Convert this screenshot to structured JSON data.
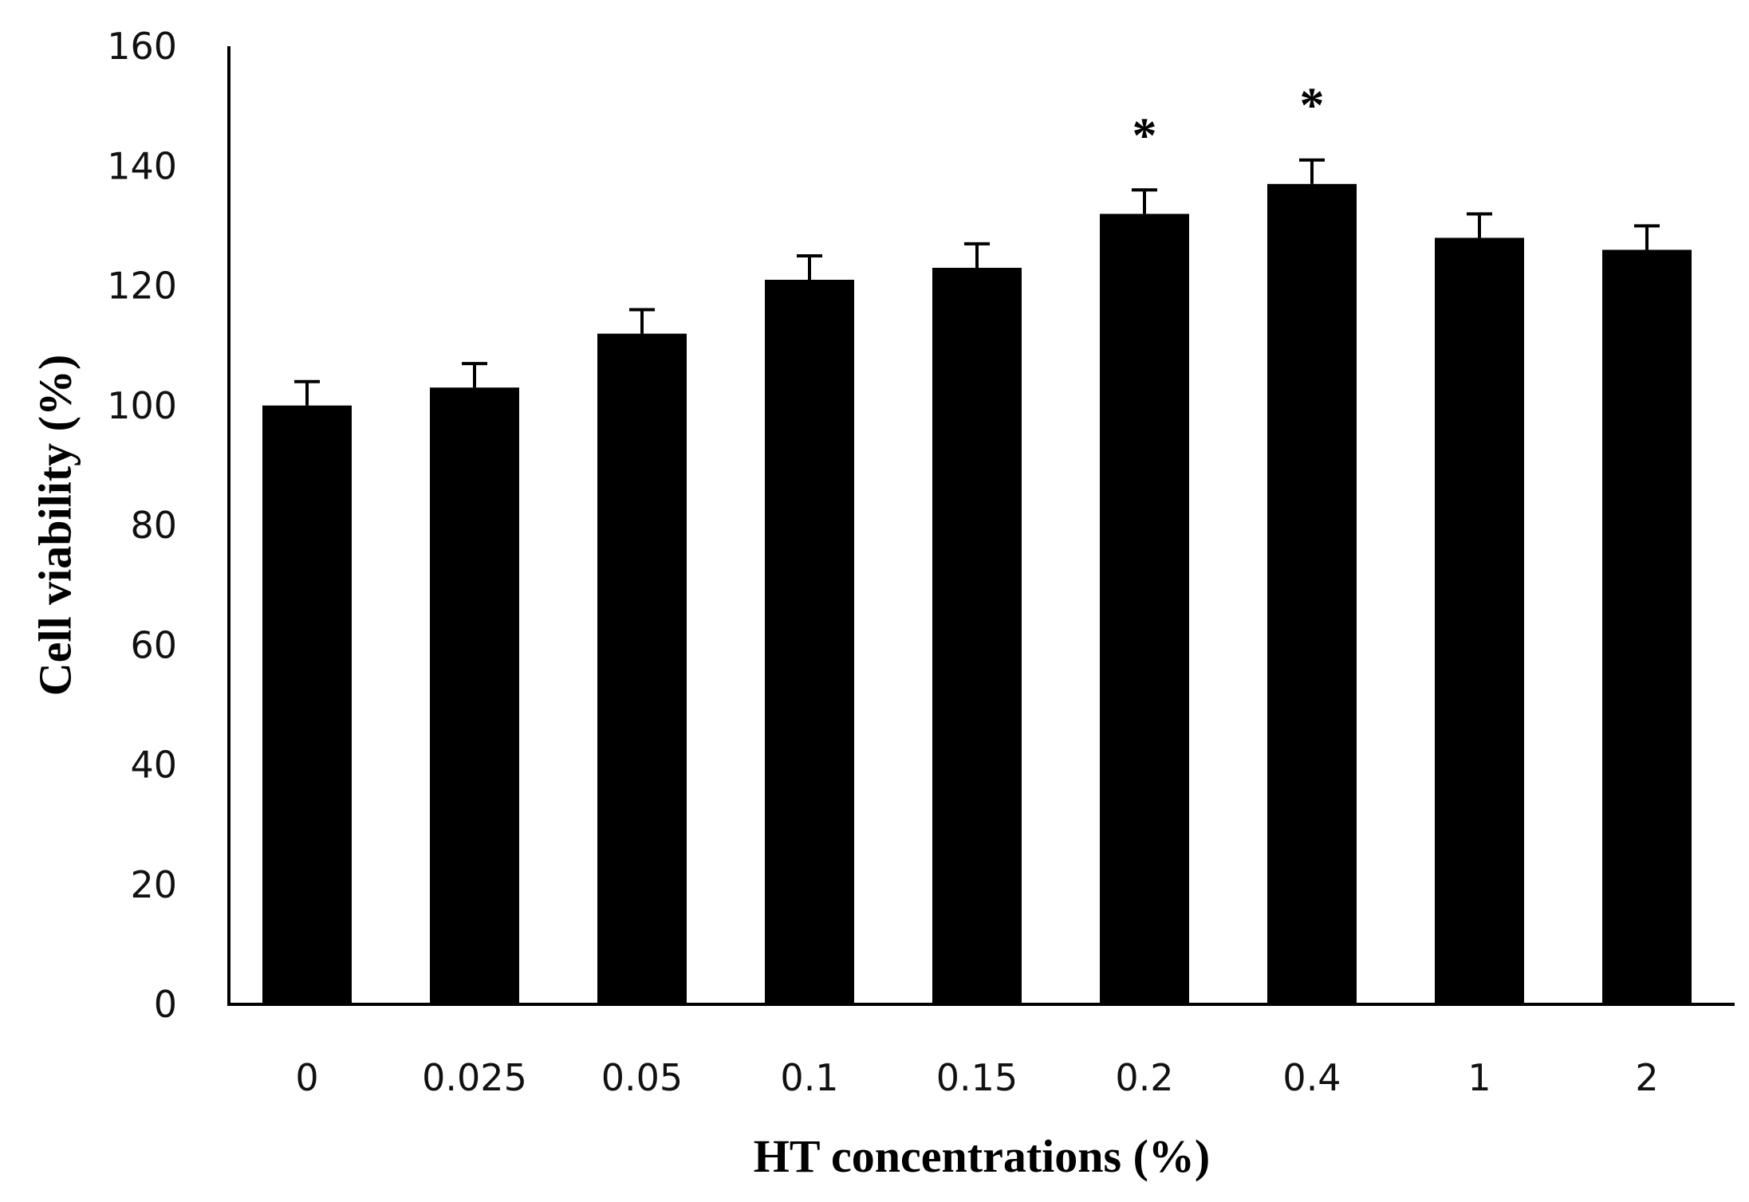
{
  "chart_data": {
    "type": "bar",
    "title": "",
    "xlabel": "HT concentrations (%)",
    "ylabel": "Cell viability (%)",
    "ylim": [
      0,
      160
    ],
    "yticks": [
      0,
      20,
      40,
      60,
      80,
      100,
      120,
      140,
      160
    ],
    "categories": [
      "0",
      "0.025",
      "0.05",
      "0.1",
      "0.15",
      "0.2",
      "0.4",
      "1",
      "2"
    ],
    "values": [
      100,
      103,
      112,
      121,
      123,
      132,
      137,
      128,
      126
    ],
    "errors": [
      4,
      4,
      4,
      4,
      4,
      4,
      4,
      4,
      4
    ],
    "annotations": [
      "",
      "",
      "",
      "",
      "",
      "*",
      "*",
      "",
      ""
    ],
    "bar_color": "#000000",
    "grid": false,
    "legend": "none"
  }
}
